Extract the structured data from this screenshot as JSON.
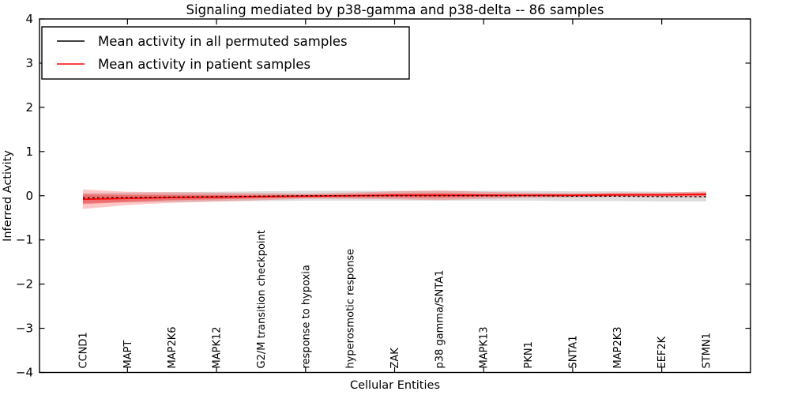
{
  "chart_data": {
    "type": "line",
    "title": "Signaling mediated by p38-gamma and p38-delta -- 86 samples",
    "xlabel": "Cellular Entities",
    "ylabel": "Inferred Activity",
    "ylim": [
      -4,
      4
    ],
    "yticks": [
      4,
      3,
      2,
      1,
      0,
      -1,
      -2,
      -3,
      -4
    ],
    "ytick_labels": [
      "4",
      "3",
      "2",
      "1",
      "0",
      "−1",
      "−2",
      "−3",
      "−4"
    ],
    "grid": false,
    "legend_position": "upper left",
    "categories": [
      "CCND1",
      "MAPT",
      "MAP2K6",
      "MAPK12",
      "G2/M transition checkpoint",
      "response to hypoxia",
      "hyperosmotic response",
      "ZAK",
      "p38 gamma/SNTA1",
      "MAPK13",
      "PKN1",
      "SNTA1",
      "MAP2K3",
      "EEF2K",
      "STMN1"
    ],
    "xtick_marked_indices": [
      1,
      3,
      5,
      7,
      9,
      11,
      13
    ],
    "series": [
      {
        "name": "Mean activity in all permuted samples",
        "color": "#000000",
        "line_style": "dashed",
        "values": [
          -0.05,
          -0.04,
          -0.03,
          -0.02,
          -0.01,
          0.0,
          0.0,
          0.0,
          0.0,
          0.0,
          0.0,
          -0.01,
          -0.01,
          -0.02,
          -0.02
        ]
      },
      {
        "name": "Mean activity in patient samples",
        "color": "#ff0000",
        "line_style": "solid",
        "values": [
          -0.08,
          -0.06,
          -0.04,
          -0.03,
          -0.02,
          -0.01,
          0.0,
          0.01,
          0.01,
          0.01,
          0.01,
          0.01,
          0.02,
          0.02,
          0.03
        ]
      }
    ],
    "bands": [
      {
        "series": "Mean activity in all permuted samples",
        "color": "#bbbbbb",
        "opacity": 0.5,
        "upper": [
          0.06,
          0.07,
          0.08,
          0.09,
          0.1,
          0.11,
          0.11,
          0.11,
          0.11,
          0.11,
          0.11,
          0.1,
          0.1,
          0.09,
          0.08
        ],
        "lower": [
          -0.16,
          -0.15,
          -0.14,
          -0.13,
          -0.12,
          -0.11,
          -0.11,
          -0.11,
          -0.11,
          -0.11,
          -0.11,
          -0.12,
          -0.12,
          -0.13,
          -0.13
        ]
      },
      {
        "series": "Mean activity in patient samples",
        "color": "#ff0000",
        "opacity": 0.22,
        "upper": [
          0.14,
          0.09,
          0.08,
          0.07,
          0.06,
          0.05,
          0.07,
          0.1,
          0.12,
          0.09,
          0.07,
          0.06,
          0.07,
          0.07,
          0.1
        ],
        "lower": [
          -0.3,
          -0.21,
          -0.16,
          -0.13,
          -0.1,
          -0.07,
          -0.07,
          -0.08,
          -0.1,
          -0.07,
          -0.05,
          -0.04,
          -0.03,
          -0.03,
          -0.04
        ]
      },
      {
        "series": "Mean activity in patient samples",
        "color": "#ff0000",
        "opacity": 0.35,
        "upper": [
          0.03,
          0.02,
          0.02,
          0.02,
          0.02,
          0.02,
          0.03,
          0.05,
          0.06,
          0.04,
          0.03,
          0.03,
          0.04,
          0.04,
          0.06
        ],
        "lower": [
          -0.19,
          -0.14,
          -0.1,
          -0.08,
          -0.06,
          -0.04,
          -0.04,
          -0.04,
          -0.05,
          -0.03,
          -0.02,
          -0.02,
          -0.01,
          -0.01,
          0.0
        ]
      }
    ],
    "legend": {
      "entries": [
        {
          "label": "Mean activity in all permuted samples",
          "color": "#000000"
        },
        {
          "label": "Mean activity in patient samples",
          "color": "#ff0000"
        }
      ]
    }
  }
}
